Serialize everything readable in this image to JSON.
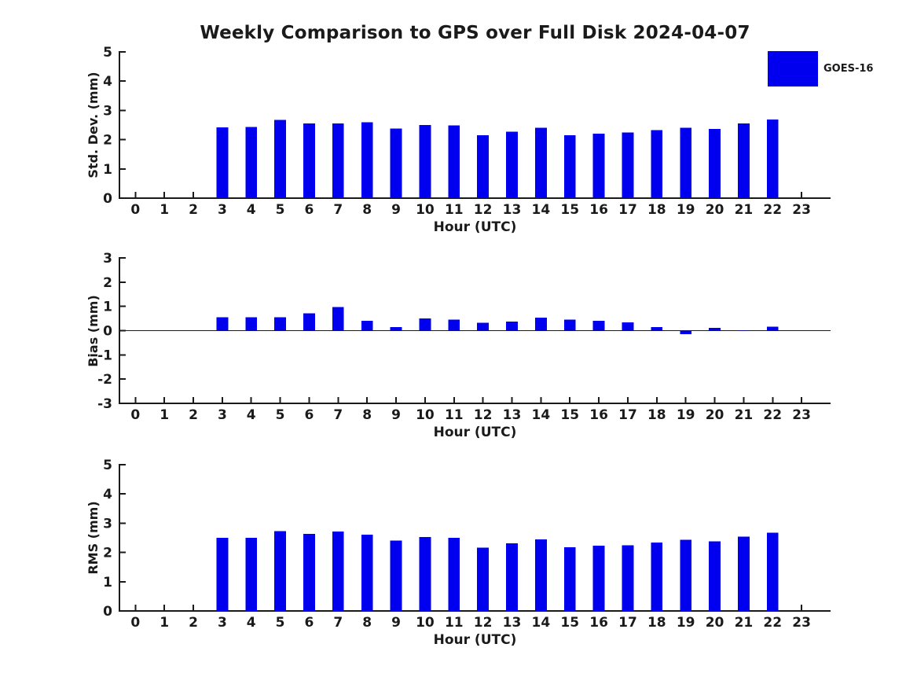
{
  "page": {
    "title": "Weekly Comparison to GPS over Full Disk 2024-04-07",
    "legend": {
      "label": "GOES-16",
      "color": "#0000EE"
    },
    "colors": {
      "bar": "#0000EE",
      "axis": "#1a1a1a",
      "text": "#1a1a1a",
      "background": "#ffffff"
    }
  },
  "chart_data": [
    {
      "type": "bar",
      "ylabel": "Std. Dev. (mm)",
      "xlabel": "Hour (UTC)",
      "xlim": [
        -0.55,
        24.0
      ],
      "ylim": [
        0,
        5
      ],
      "yticks": [
        0,
        1,
        2,
        3,
        4,
        5
      ],
      "xticks": [
        0,
        1,
        2,
        3,
        4,
        5,
        6,
        7,
        8,
        9,
        10,
        11,
        12,
        13,
        14,
        15,
        16,
        17,
        18,
        19,
        20,
        21,
        22,
        23
      ],
      "grid": false,
      "legend_position": "upper-right-outside",
      "series": [
        {
          "name": "GOES-16",
          "color": "#0000EE",
          "x": [
            3,
            4,
            5,
            6,
            7,
            8,
            9,
            10,
            11,
            12,
            13,
            14,
            15,
            16,
            17,
            18,
            19,
            20,
            21,
            22
          ],
          "values": [
            2.42,
            2.43,
            2.68,
            2.56,
            2.55,
            2.59,
            2.38,
            2.5,
            2.48,
            2.15,
            2.27,
            2.4,
            2.15,
            2.21,
            2.24,
            2.33,
            2.4,
            2.37,
            2.55,
            2.69
          ]
        }
      ]
    },
    {
      "type": "bar",
      "ylabel": "Bias (mm)",
      "xlabel": "Hour (UTC)",
      "xlim": [
        -0.55,
        24.0
      ],
      "ylim": [
        -3,
        3
      ],
      "yticks": [
        -3,
        -2,
        -1,
        0,
        1,
        2,
        3
      ],
      "xticks": [
        0,
        1,
        2,
        3,
        4,
        5,
        6,
        7,
        8,
        9,
        10,
        11,
        12,
        13,
        14,
        15,
        16,
        17,
        18,
        19,
        20,
        21,
        22,
        23
      ],
      "grid": false,
      "zero_line": true,
      "series": [
        {
          "name": "GOES-16",
          "color": "#0000EE",
          "x": [
            3,
            4,
            5,
            6,
            7,
            8,
            9,
            10,
            11,
            12,
            13,
            14,
            15,
            16,
            17,
            18,
            19,
            20,
            21,
            22
          ],
          "values": [
            0.55,
            0.55,
            0.55,
            0.72,
            0.97,
            0.4,
            0.15,
            0.5,
            0.46,
            0.33,
            0.38,
            0.54,
            0.45,
            0.41,
            0.34,
            0.15,
            -0.15,
            0.12,
            0.02,
            0.16
          ]
        }
      ]
    },
    {
      "type": "bar",
      "ylabel": "RMS (mm)",
      "xlabel": "Hour (UTC)",
      "xlim": [
        -0.55,
        24.0
      ],
      "ylim": [
        0,
        5
      ],
      "yticks": [
        0,
        1,
        2,
        3,
        4,
        5
      ],
      "xticks": [
        0,
        1,
        2,
        3,
        4,
        5,
        6,
        7,
        8,
        9,
        10,
        11,
        12,
        13,
        14,
        15,
        16,
        17,
        18,
        19,
        20,
        21,
        22,
        23
      ],
      "grid": false,
      "series": [
        {
          "name": "GOES-16",
          "color": "#0000EE",
          "x": [
            3,
            4,
            5,
            6,
            7,
            8,
            9,
            10,
            11,
            12,
            13,
            14,
            15,
            16,
            17,
            18,
            19,
            20,
            21,
            22
          ],
          "values": [
            2.5,
            2.5,
            2.73,
            2.64,
            2.71,
            2.61,
            2.41,
            2.53,
            2.5,
            2.17,
            2.31,
            2.44,
            2.18,
            2.23,
            2.24,
            2.34,
            2.43,
            2.38,
            2.54,
            2.68
          ]
        }
      ]
    }
  ]
}
